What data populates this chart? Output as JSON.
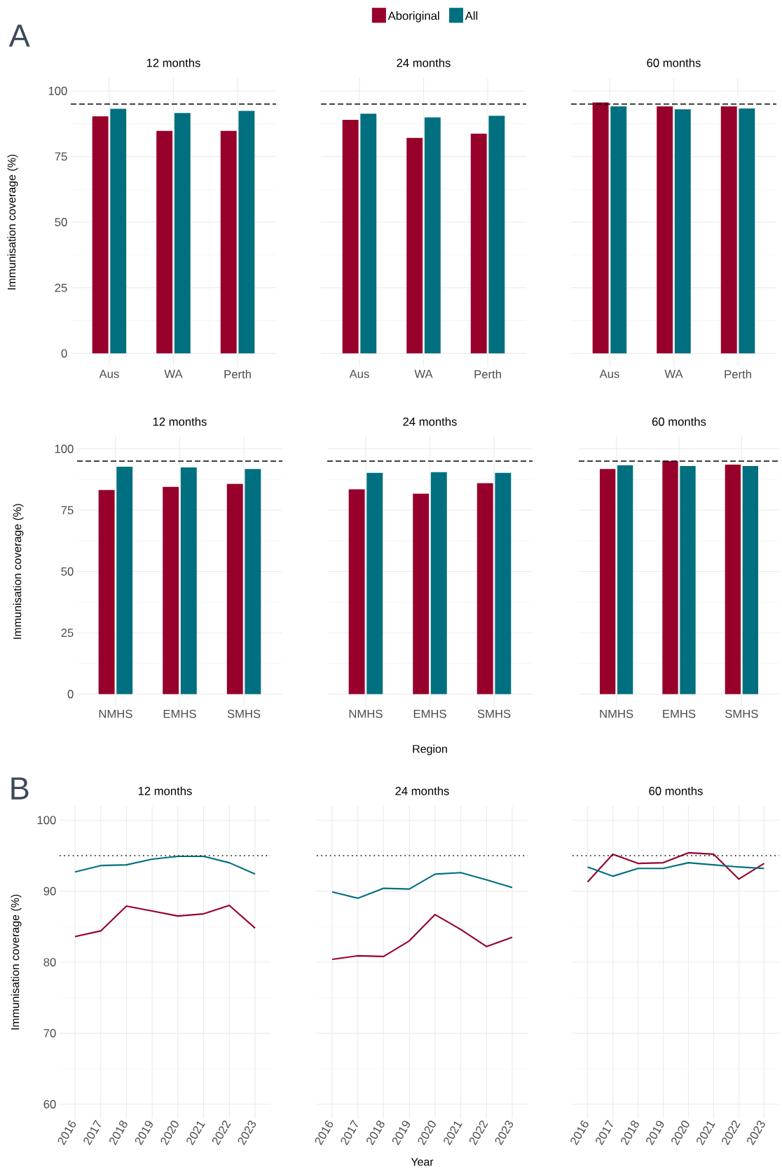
{
  "chart_data": [
    {
      "type": "bar",
      "title": "12 months",
      "ylabel": "Immunisation coverage (%)",
      "annotations": [
        "A"
      ],
      "legend": "top",
      "grid": true,
      "categories": [
        "Aus",
        "WA",
        "Perth"
      ],
      "ylim": [
        -5,
        105
      ],
      "yticks": [
        0,
        25,
        50,
        75,
        100
      ],
      "ref_lines": [
        {
          "axis": "y",
          "value": 95,
          "color": "#000000",
          "line_style": "dashed"
        }
      ],
      "series": [
        {
          "name": "Aboriginal",
          "color": "#97002a",
          "values": [
            90.3,
            84.8,
            84.8
          ]
        },
        {
          "name": "All",
          "color": "#006f80",
          "values": [
            93.2,
            91.6,
            92.4
          ]
        }
      ]
    },
    {
      "type": "bar",
      "title": "24 months",
      "tick_labels": "x",
      "grid": true,
      "categories": [
        "Aus",
        "WA",
        "Perth"
      ],
      "ylim": [
        -5,
        105
      ],
      "yticks": [
        0,
        25,
        50,
        75,
        100
      ],
      "ref_lines": [
        {
          "axis": "y",
          "value": 95,
          "color": "#000000",
          "line_style": "dashed"
        }
      ],
      "series": [
        {
          "color": "#97002a",
          "values": [
            89.0,
            82.1,
            83.7
          ]
        },
        {
          "color": "#006f80",
          "values": [
            91.3,
            89.9,
            90.5
          ]
        }
      ]
    },
    {
      "type": "bar",
      "title": "60 months",
      "tick_labels": "x",
      "grid": true,
      "categories": [
        "Aus",
        "WA",
        "Perth"
      ],
      "ylim": [
        -5,
        105
      ],
      "yticks": [
        0,
        25,
        50,
        75,
        100
      ],
      "ref_lines": [
        {
          "axis": "y",
          "value": 95,
          "color": "#000000",
          "line_style": "dashed"
        }
      ],
      "series": [
        {
          "color": "#97002a",
          "values": [
            95.6,
            94.1,
            94.1
          ]
        },
        {
          "color": "#006f80",
          "values": [
            94.1,
            93.0,
            93.3
          ]
        }
      ]
    },
    {
      "type": "bar",
      "title": "12 months",
      "ylabel": "Immunisation coverage (%)",
      "grid": true,
      "categories": [
        "NMHS",
        "EMHS",
        "SMHS"
      ],
      "ylim": [
        -5,
        105
      ],
      "yticks": [
        0,
        25,
        50,
        75,
        100
      ],
      "ref_lines": [
        {
          "axis": "y",
          "value": 95,
          "color": "#000000",
          "line_style": "dashed"
        }
      ],
      "series": [
        {
          "color": "#97002a",
          "values": [
            83.2,
            84.5,
            85.7
          ]
        },
        {
          "color": "#006f80",
          "values": [
            92.7,
            92.4,
            91.8
          ]
        }
      ]
    },
    {
      "type": "bar",
      "title": "24 months",
      "xlabel": "Region",
      "tick_labels": "x",
      "grid": true,
      "categories": [
        "NMHS",
        "EMHS",
        "SMHS"
      ],
      "ylim": [
        -5,
        105
      ],
      "yticks": [
        0,
        25,
        50,
        75,
        100
      ],
      "ref_lines": [
        {
          "axis": "y",
          "value": 95,
          "color": "#000000",
          "line_style": "dashed"
        }
      ],
      "series": [
        {
          "color": "#97002a",
          "values": [
            83.5,
            81.7,
            86.0
          ]
        },
        {
          "color": "#006f80",
          "values": [
            90.2,
            90.5,
            90.2
          ]
        }
      ]
    },
    {
      "type": "bar",
      "title": "60 months",
      "tick_labels": "x",
      "grid": true,
      "categories": [
        "NMHS",
        "EMHS",
        "SMHS"
      ],
      "ylim": [
        -5,
        105
      ],
      "yticks": [
        0,
        25,
        50,
        75,
        100
      ],
      "ref_lines": [
        {
          "axis": "y",
          "value": 95,
          "color": "#000000",
          "line_style": "dashed"
        }
      ],
      "series": [
        {
          "color": "#97002a",
          "values": [
            91.8,
            95.1,
            93.6
          ]
        },
        {
          "color": "#006f80",
          "values": [
            93.3,
            93.0,
            93.0
          ]
        }
      ]
    },
    {
      "type": "line",
      "title": "12 months",
      "ylabel": "Immunisation coverage (%)",
      "annotations": [
        "B"
      ],
      "grid": true,
      "categories": [
        "2016",
        "2017",
        "2018",
        "2019",
        "2020",
        "2021",
        "2022",
        "2023"
      ],
      "ylim": [
        58,
        102
      ],
      "yticks": [
        60,
        70,
        80,
        90,
        100
      ],
      "ref_lines": [
        {
          "axis": "y",
          "value": 95,
          "color": "#000000",
          "line_style": "dotted"
        }
      ],
      "series": [
        {
          "color": "#97002a",
          "values": [
            83.6,
            84.4,
            87.9,
            87.2,
            86.5,
            86.8,
            88.0,
            84.8
          ]
        },
        {
          "color": "#006f80",
          "values": [
            92.7,
            93.6,
            93.7,
            94.5,
            94.9,
            94.9,
            94.0,
            92.4
          ]
        }
      ]
    },
    {
      "type": "line",
      "title": "24 months",
      "xlabel": "Year",
      "tick_labels": "x",
      "grid": true,
      "categories": [
        "2016",
        "2017",
        "2018",
        "2019",
        "2020",
        "2021",
        "2022",
        "2023"
      ],
      "ylim": [
        58,
        102
      ],
      "yticks": [
        60,
        70,
        80,
        90,
        100
      ],
      "ref_lines": [
        {
          "axis": "y",
          "value": 95,
          "color": "#000000",
          "line_style": "dotted"
        }
      ],
      "series": [
        {
          "color": "#97002a",
          "values": [
            80.4,
            80.9,
            80.8,
            83.0,
            86.7,
            84.6,
            82.2,
            83.5
          ]
        },
        {
          "color": "#006f80",
          "values": [
            89.9,
            89.0,
            90.4,
            90.3,
            92.4,
            92.6,
            91.6,
            90.5
          ]
        }
      ]
    },
    {
      "type": "line",
      "title": "60 months",
      "tick_labels": "x",
      "grid": true,
      "categories": [
        "2016",
        "2017",
        "2018",
        "2019",
        "2020",
        "2021",
        "2022",
        "2023"
      ],
      "ylim": [
        58,
        102
      ],
      "yticks": [
        60,
        70,
        80,
        90,
        100
      ],
      "ref_lines": [
        {
          "axis": "y",
          "value": 95,
          "color": "#000000",
          "line_style": "dotted"
        }
      ],
      "series": [
        {
          "color": "#97002a",
          "values": [
            91.3,
            95.2,
            93.9,
            94.0,
            95.4,
            95.2,
            91.7,
            93.9
          ]
        },
        {
          "color": "#006f80",
          "values": [
            93.4,
            92.1,
            93.2,
            93.2,
            94.0,
            93.7,
            93.4,
            93.2
          ]
        }
      ]
    }
  ]
}
